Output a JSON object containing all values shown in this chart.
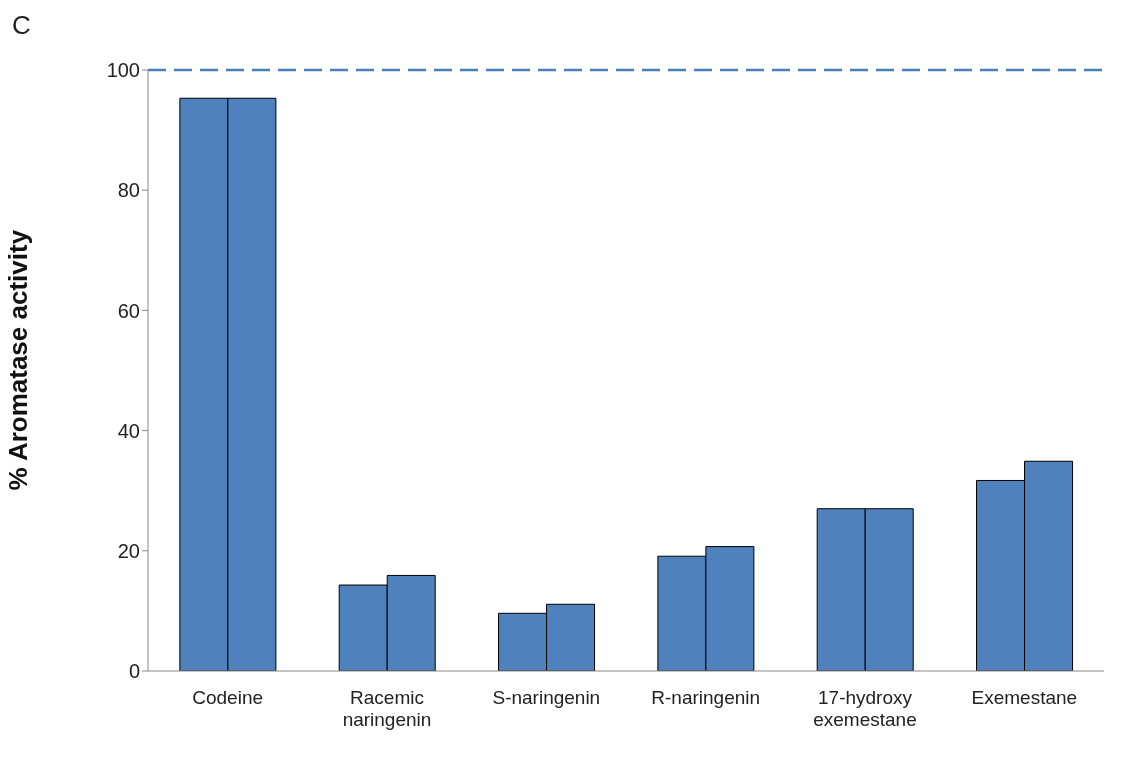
{
  "chart_data": {
    "type": "bar",
    "ylabel": "% Aromatase activity",
    "annotations": [
      "C"
    ],
    "categories": [
      "Codeine",
      "Racemic naringenin",
      "S-naringenin",
      "R-naringenin",
      "17-hydroxy exemestane",
      "Exemestane"
    ],
    "series": [
      {
        "color": "#4f81bd",
        "values": [
          95.3,
          14.3,
          9.6,
          19.1,
          27.0,
          31.7
        ]
      },
      {
        "color": "#4f81bd",
        "values": [
          95.3,
          15.9,
          11.1,
          20.7,
          27.0,
          34.9
        ]
      }
    ],
    "ylim": [
      0,
      100
    ],
    "yticks": [
      0,
      20,
      40,
      60,
      80,
      100
    ],
    "grid": false,
    "legend": false,
    "ref_lines": [
      {
        "axis": "y",
        "value": 100,
        "label": null,
        "color": "#4a7ebb",
        "line_style": "dashed"
      }
    ]
  }
}
